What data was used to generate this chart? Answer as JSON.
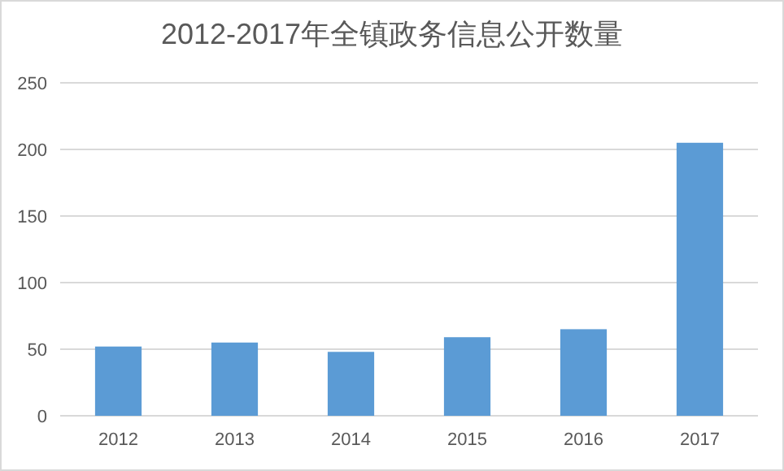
{
  "chart_data": {
    "type": "bar",
    "title": "2012-2017年全镇政务信息公开数量",
    "categories": [
      "2012",
      "2013",
      "2014",
      "2015",
      "2016",
      "2017"
    ],
    "values": [
      52,
      55,
      48,
      59,
      65,
      205
    ],
    "color": "#5b9bd5",
    "ylim": [
      0,
      250
    ],
    "yticks": [
      0,
      50,
      100,
      150,
      200,
      250
    ],
    "grid": "y"
  }
}
